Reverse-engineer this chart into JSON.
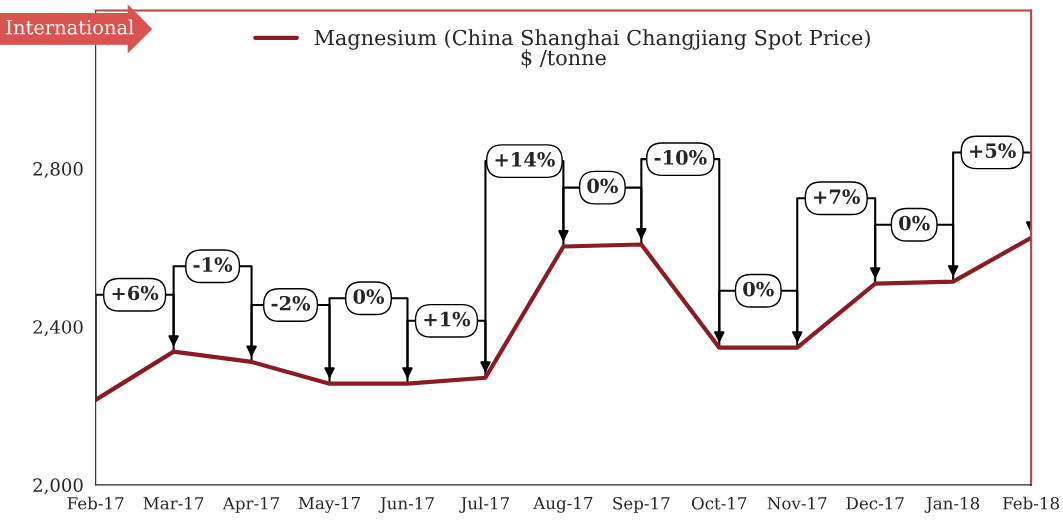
{
  "chart_data": {
    "type": "line",
    "categories": [
      "Feb-17",
      "Mar-17",
      "Apr-17",
      "May-17",
      "Jun-17",
      "Jul-17",
      "Aug-17",
      "Sep-17",
      "Oct-17",
      "Nov-17",
      "Dec-17",
      "Jan-18",
      "Feb-18"
    ],
    "series": [
      {
        "name": "Magnesium (China Shanghai Changjiang Spot Price)",
        "color": "#8b1c24",
        "values": [
          2215,
          2337,
          2311,
          2256,
          2256,
          2271,
          2603,
          2608,
          2347,
          2347,
          2509,
          2514,
          2625
        ]
      }
    ],
    "subtitle": "$ /tonne",
    "annotations": [
      "International",
      "+6%",
      "-1%",
      "-2%",
      "0%",
      "+1%",
      "+14%",
      "0%",
      "-10%",
      "0%",
      "+7%",
      "0%",
      "+5%"
    ],
    "ylim": [
      2000,
      3200
    ],
    "yticks": [
      {
        "value": 2000,
        "label": "2,000"
      },
      {
        "value": 2400,
        "label": "2,400"
      },
      {
        "value": 2800,
        "label": "2,800"
      }
    ],
    "legend": "top",
    "grid": false
  }
}
